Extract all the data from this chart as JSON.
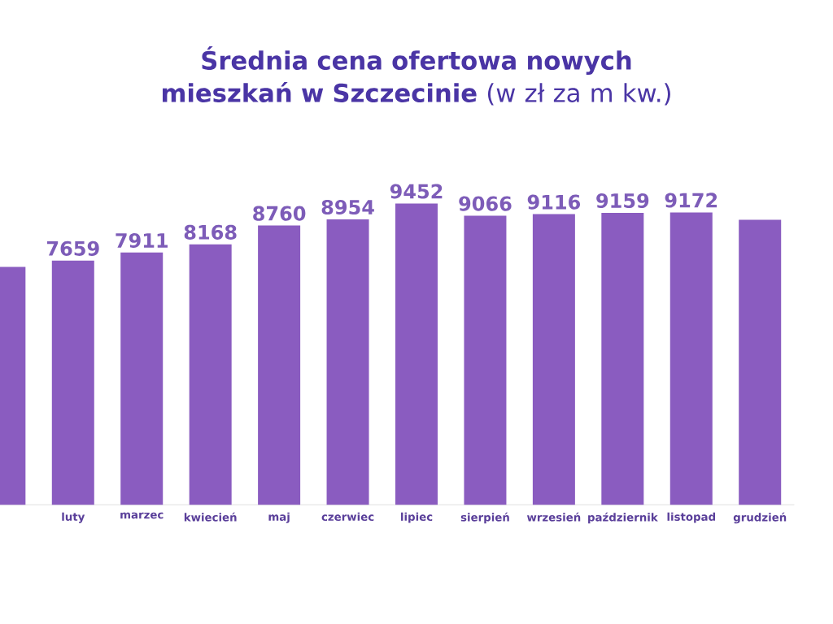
{
  "chart_data": {
    "type": "bar",
    "title": "**Średnia cena ofertowa nowych mieszkań w Szczecinie** (w zł za m kw.)",
    "categories": [
      null,
      "luty",
      "marzec",
      "kwiecień",
      "maj",
      "czerwiec",
      "lipiec",
      "sierpień",
      "wrzesień",
      "październik",
      "listopad",
      "grudzień"
    ],
    "values": [
      7460,
      7659,
      7911,
      8168,
      8760,
      8954,
      9452,
      9066,
      9116,
      9159,
      9172,
      8940
    ],
    "value_labels": [
      null,
      "7659",
      "7911",
      "8168",
      "8760",
      "8954",
      "9452",
      "9066",
      "9116",
      "9159",
      "9172",
      null
    ],
    "color": "#8a5cc0",
    "tick_labels": "x"
  }
}
